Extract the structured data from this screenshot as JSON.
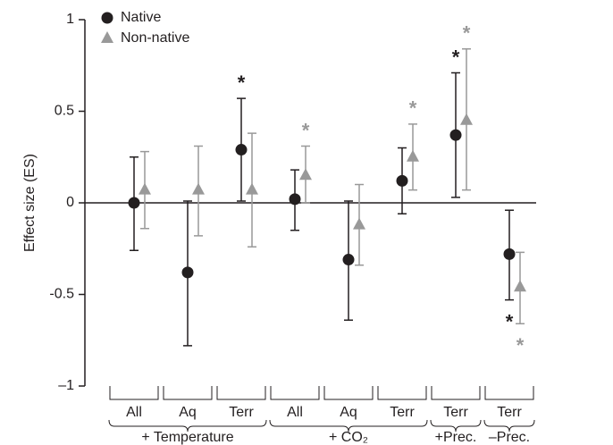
{
  "chart_data": {
    "type": "errorbar",
    "y_label": "Effect size (ES)",
    "ylim": [
      -1,
      1
    ],
    "yticks": [
      {
        "value": -1,
        "label": "–1"
      },
      {
        "value": -0.5,
        "label": "-0.5"
      },
      0,
      0.5,
      1
    ],
    "legend": "top-left",
    "significance_label": "*",
    "groups": [
      {
        "label": "+ Temperature",
        "categories": [
          "All",
          "Aq",
          "Terr"
        ]
      },
      {
        "label": "+ CO₂",
        "categories": [
          "All",
          "Aq",
          "Terr"
        ]
      },
      {
        "label": "+Prec.",
        "categories": [
          "Terr"
        ]
      },
      {
        "label": "–Prec.",
        "categories": [
          "Terr"
        ]
      }
    ],
    "series": [
      {
        "name": "Native",
        "marker": "circle",
        "color": "#231f20",
        "values": [
          0,
          -0.38,
          0.29,
          0.02,
          -0.31,
          0.12,
          0.37,
          -0.28
        ],
        "lower": [
          -0.26,
          -0.78,
          0.01,
          -0.15,
          -0.64,
          -0.06,
          0.03,
          -0.53
        ],
        "upper": [
          0.25,
          0.01,
          0.57,
          0.18,
          0.01,
          0.3,
          0.71,
          -0.04
        ],
        "significant": [
          false,
          false,
          true,
          false,
          false,
          false,
          true,
          true
        ]
      },
      {
        "name": "Non-native",
        "marker": "triangle",
        "color": "#999999",
        "values": [
          0.07,
          0.07,
          0.07,
          0.15,
          -0.12,
          0.25,
          0.45,
          -0.46
        ],
        "lower": [
          -0.14,
          -0.18,
          -0.24,
          0.0,
          -0.34,
          0.07,
          0.07,
          -0.66
        ],
        "upper": [
          0.28,
          0.31,
          0.38,
          0.31,
          0.1,
          0.43,
          0.84,
          -0.27
        ],
        "significant": [
          false,
          false,
          false,
          true,
          false,
          true,
          true,
          true
        ]
      }
    ]
  }
}
